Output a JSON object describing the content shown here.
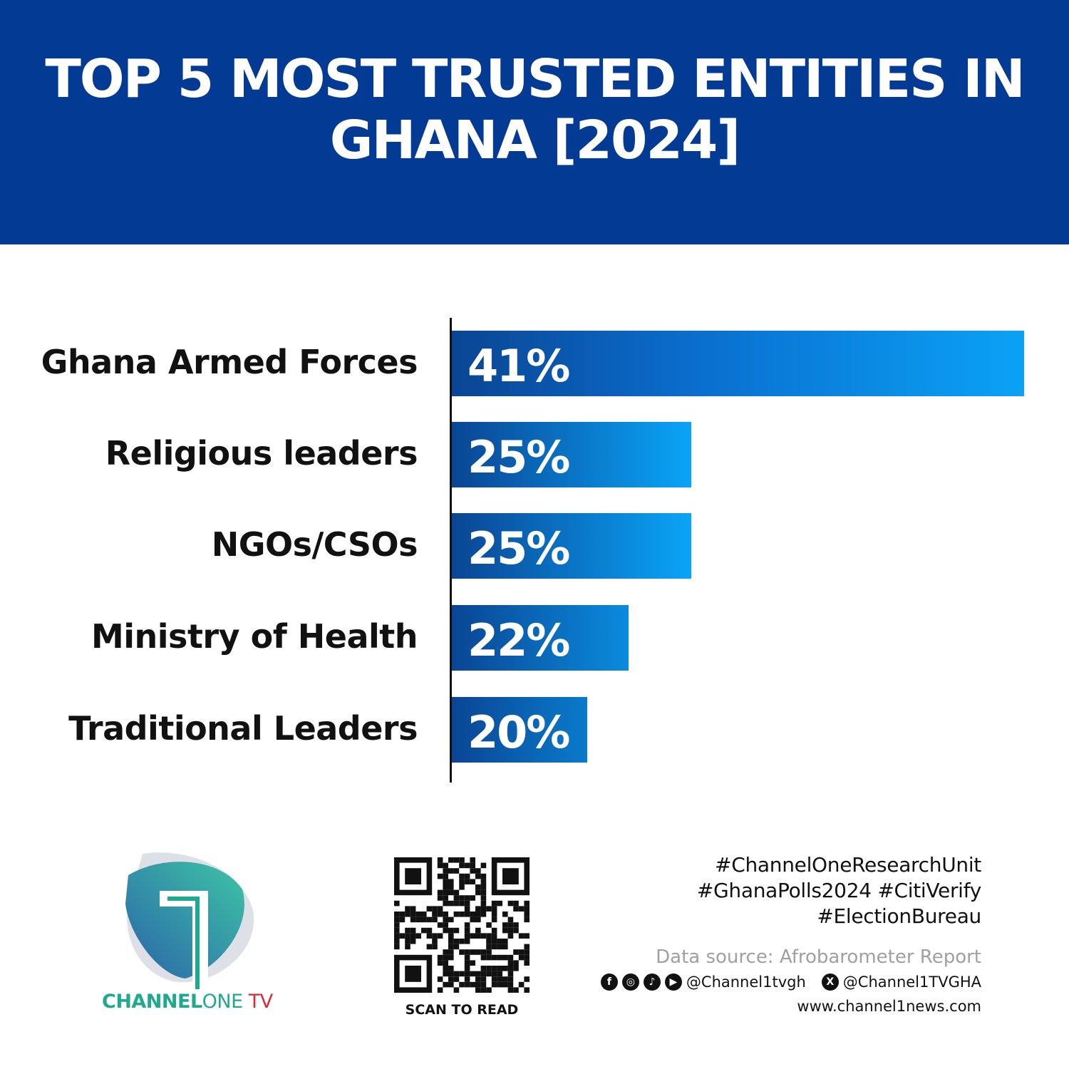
{
  "header": {
    "title": "TOP 5 MOST TRUSTED ENTITIES IN GHANA [2024]",
    "background": "#033a93"
  },
  "chart_data": {
    "type": "bar",
    "orientation": "horizontal",
    "title": "TOP 5 MOST TRUSTED ENTITIES IN GHANA [2024]",
    "categories": [
      "Ghana Armed Forces",
      "Religious leaders",
      "NGOs/CSOs",
      "Ministry of Health",
      "Traditional Leaders"
    ],
    "values": [
      41,
      25,
      25,
      22,
      20
    ],
    "value_labels": [
      "41%",
      "25%",
      "25%",
      "22%",
      "20%"
    ],
    "unit": "%",
    "xlim": [
      13.5,
      41
    ],
    "grid": false,
    "bar_colors": {
      "start": "#0a4594",
      "end": "#0aa2f5"
    }
  },
  "footer": {
    "brand": {
      "a": "CHANNEL",
      "b": "ONE",
      "c": " TV"
    },
    "qr_caption": "SCAN TO READ",
    "hashtags": [
      "#ChannelOneResearchUnit",
      "#GhanaPolls2024 #CitiVerify",
      "#ElectionBureau"
    ],
    "source": "Data source: Afrobarometer Report",
    "social_handle": "@Channel1tvgh",
    "x_handle": "@Channel1TVGHA",
    "website": "www.channel1news.com",
    "icons": [
      "facebook-icon",
      "instagram-icon",
      "tiktok-icon",
      "youtube-icon",
      "x-icon"
    ]
  }
}
